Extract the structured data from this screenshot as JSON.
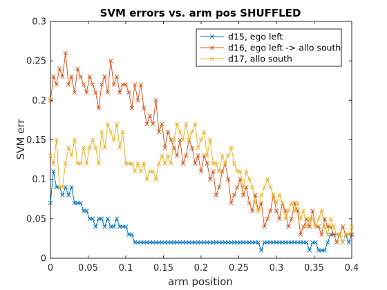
{
  "chart_data": {
    "type": "line",
    "title": "SVM errors vs. arm pos SHUFFLED",
    "xlabel": "arm position",
    "ylabel": "SVM err",
    "xlim": [
      0,
      0.4
    ],
    "ylim": [
      0,
      0.3
    ],
    "x_ticks": [
      "0",
      "0.05",
      "0.1",
      "0.15",
      "0.2",
      "0.25",
      "0.3",
      "0.35",
      "0.4"
    ],
    "y_ticks": [
      "0",
      "0.05",
      "0.1",
      "0.15",
      "0.2",
      "0.25",
      "0.3"
    ],
    "grid": false,
    "legend_position": "top-right",
    "marker": "x",
    "series": [
      {
        "name": "d15, ego left",
        "color": "#0072BD",
        "x_start": 0,
        "x_step": 0.004,
        "values": [
          0.07,
          0.11,
          0.09,
          0.09,
          0.08,
          0.09,
          0.08,
          0.09,
          0.07,
          0.07,
          0.07,
          0.06,
          0.06,
          0.05,
          0.05,
          0.04,
          0.05,
          0.05,
          0.04,
          0.05,
          0.04,
          0.04,
          0.05,
          0.04,
          0.04,
          0.04,
          0.03,
          0.03,
          0.02,
          0.02,
          0.02,
          0.02,
          0.02,
          0.02,
          0.02,
          0.02,
          0.02,
          0.02,
          0.02,
          0.02,
          0.02,
          0.02,
          0.02,
          0.02,
          0.02,
          0.02,
          0.02,
          0.02,
          0.02,
          0.02,
          0.02,
          0.02,
          0.02,
          0.02,
          0.02,
          0.02,
          0.02,
          0.02,
          0.02,
          0.02,
          0.02,
          0.02,
          0.02,
          0.02,
          0.02,
          0.02,
          0.02,
          0.02,
          0.02,
          0.02,
          0.01,
          0.02,
          0.02,
          0.02,
          0.02,
          0.02,
          0.02,
          0.02,
          0.02,
          0.02,
          0.02,
          0.02,
          0.02,
          0.02,
          0.02,
          0.02,
          0.01,
          0.02,
          0.02,
          0.01,
          0.01,
          0.01,
          0.02,
          0.03,
          0.03,
          0.03,
          0.03,
          0.02,
          0.03,
          0.02,
          0.03
        ]
      },
      {
        "name": "d16, ego left -> allo south",
        "color": "#D95319",
        "x_start": 0,
        "x_step": 0.004,
        "values": [
          0.2,
          0.23,
          0.22,
          0.24,
          0.23,
          0.26,
          0.22,
          0.23,
          0.21,
          0.24,
          0.23,
          0.22,
          0.21,
          0.23,
          0.22,
          0.21,
          0.19,
          0.22,
          0.23,
          0.21,
          0.25,
          0.22,
          0.23,
          0.21,
          0.22,
          0.22,
          0.21,
          0.19,
          0.22,
          0.2,
          0.22,
          0.19,
          0.17,
          0.18,
          0.17,
          0.2,
          0.16,
          0.17,
          0.14,
          0.16,
          0.15,
          0.14,
          0.13,
          0.15,
          0.12,
          0.13,
          0.15,
          0.14,
          0.12,
          0.13,
          0.11,
          0.13,
          0.12,
          0.1,
          0.11,
          0.08,
          0.09,
          0.11,
          0.12,
          0.1,
          0.07,
          0.08,
          0.09,
          0.1,
          0.08,
          0.09,
          0.07,
          0.06,
          0.08,
          0.06,
          0.07,
          0.04,
          0.05,
          0.06,
          0.08,
          0.06,
          0.05,
          0.07,
          0.06,
          0.04,
          0.05,
          0.07,
          0.06,
          0.03,
          0.04,
          0.05,
          0.04,
          0.06,
          0.04,
          0.04,
          0.03,
          0.05,
          0.04,
          0.04,
          0.03,
          0.02,
          0.03,
          0.04,
          0.03,
          0.03,
          0.03
        ]
      },
      {
        "name": "d17, allo south",
        "color": "#EDB120",
        "x_start": 0,
        "x_step": 0.004,
        "values": [
          0.13,
          0.12,
          0.15,
          0.09,
          0.09,
          0.12,
          0.14,
          0.13,
          0.15,
          0.12,
          0.12,
          0.14,
          0.12,
          0.14,
          0.15,
          0.14,
          0.12,
          0.16,
          0.14,
          0.17,
          0.16,
          0.15,
          0.17,
          0.14,
          0.16,
          0.12,
          0.12,
          0.12,
          0.11,
          0.12,
          0.11,
          0.12,
          0.1,
          0.11,
          0.11,
          0.1,
          0.12,
          0.13,
          0.12,
          0.13,
          0.12,
          0.15,
          0.17,
          0.16,
          0.15,
          0.17,
          0.15,
          0.16,
          0.17,
          0.14,
          0.15,
          0.16,
          0.13,
          0.15,
          0.12,
          0.12,
          0.11,
          0.13,
          0.12,
          0.13,
          0.14,
          0.12,
          0.11,
          0.11,
          0.09,
          0.11,
          0.1,
          0.09,
          0.07,
          0.06,
          0.08,
          0.09,
          0.1,
          0.09,
          0.08,
          0.07,
          0.08,
          0.07,
          0.05,
          0.06,
          0.07,
          0.06,
          0.07,
          0.05,
          0.06,
          0.04,
          0.05,
          0.05,
          0.04,
          0.05,
          0.06,
          0.04,
          0.03,
          0.05,
          0.04,
          0.03,
          0.03,
          0.02,
          0.03,
          0.03,
          0.04
        ]
      }
    ]
  }
}
